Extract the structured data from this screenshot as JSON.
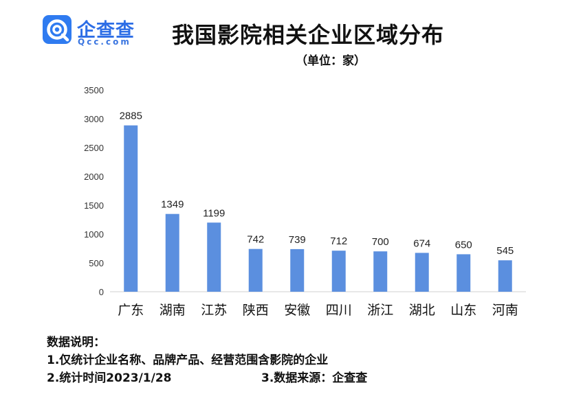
{
  "logo": {
    "name_cn": "企查查",
    "name_en": "Qcc.com"
  },
  "header": {
    "title": "我国影院相关企业区域分布",
    "unit": "（单位：家）"
  },
  "chart_data": {
    "type": "bar",
    "title": "我国影院相关企业区域分布",
    "unit": "（单位：家）",
    "categories": [
      "广东",
      "湖南",
      "江苏",
      "陕西",
      "安徽",
      "四川",
      "浙江",
      "湖北",
      "山东",
      "河南"
    ],
    "values": [
      2885,
      1349,
      1199,
      742,
      739,
      712,
      700,
      674,
      650,
      545
    ],
    "ylim": [
      0,
      3500
    ],
    "yticks": [
      "0",
      "500",
      "1000",
      "1500",
      "2000",
      "2500",
      "3000",
      "3500"
    ],
    "bar_color": "#5b8fdf",
    "grid": false,
    "legend": "none"
  },
  "notes": {
    "heading": "数据说明：",
    "line1": "1.仅统计企业名称、品牌产品、经营范围含影院的企业",
    "line2": "2.统计时间2023/1/28",
    "line3": "3.数据来源：企查查"
  }
}
